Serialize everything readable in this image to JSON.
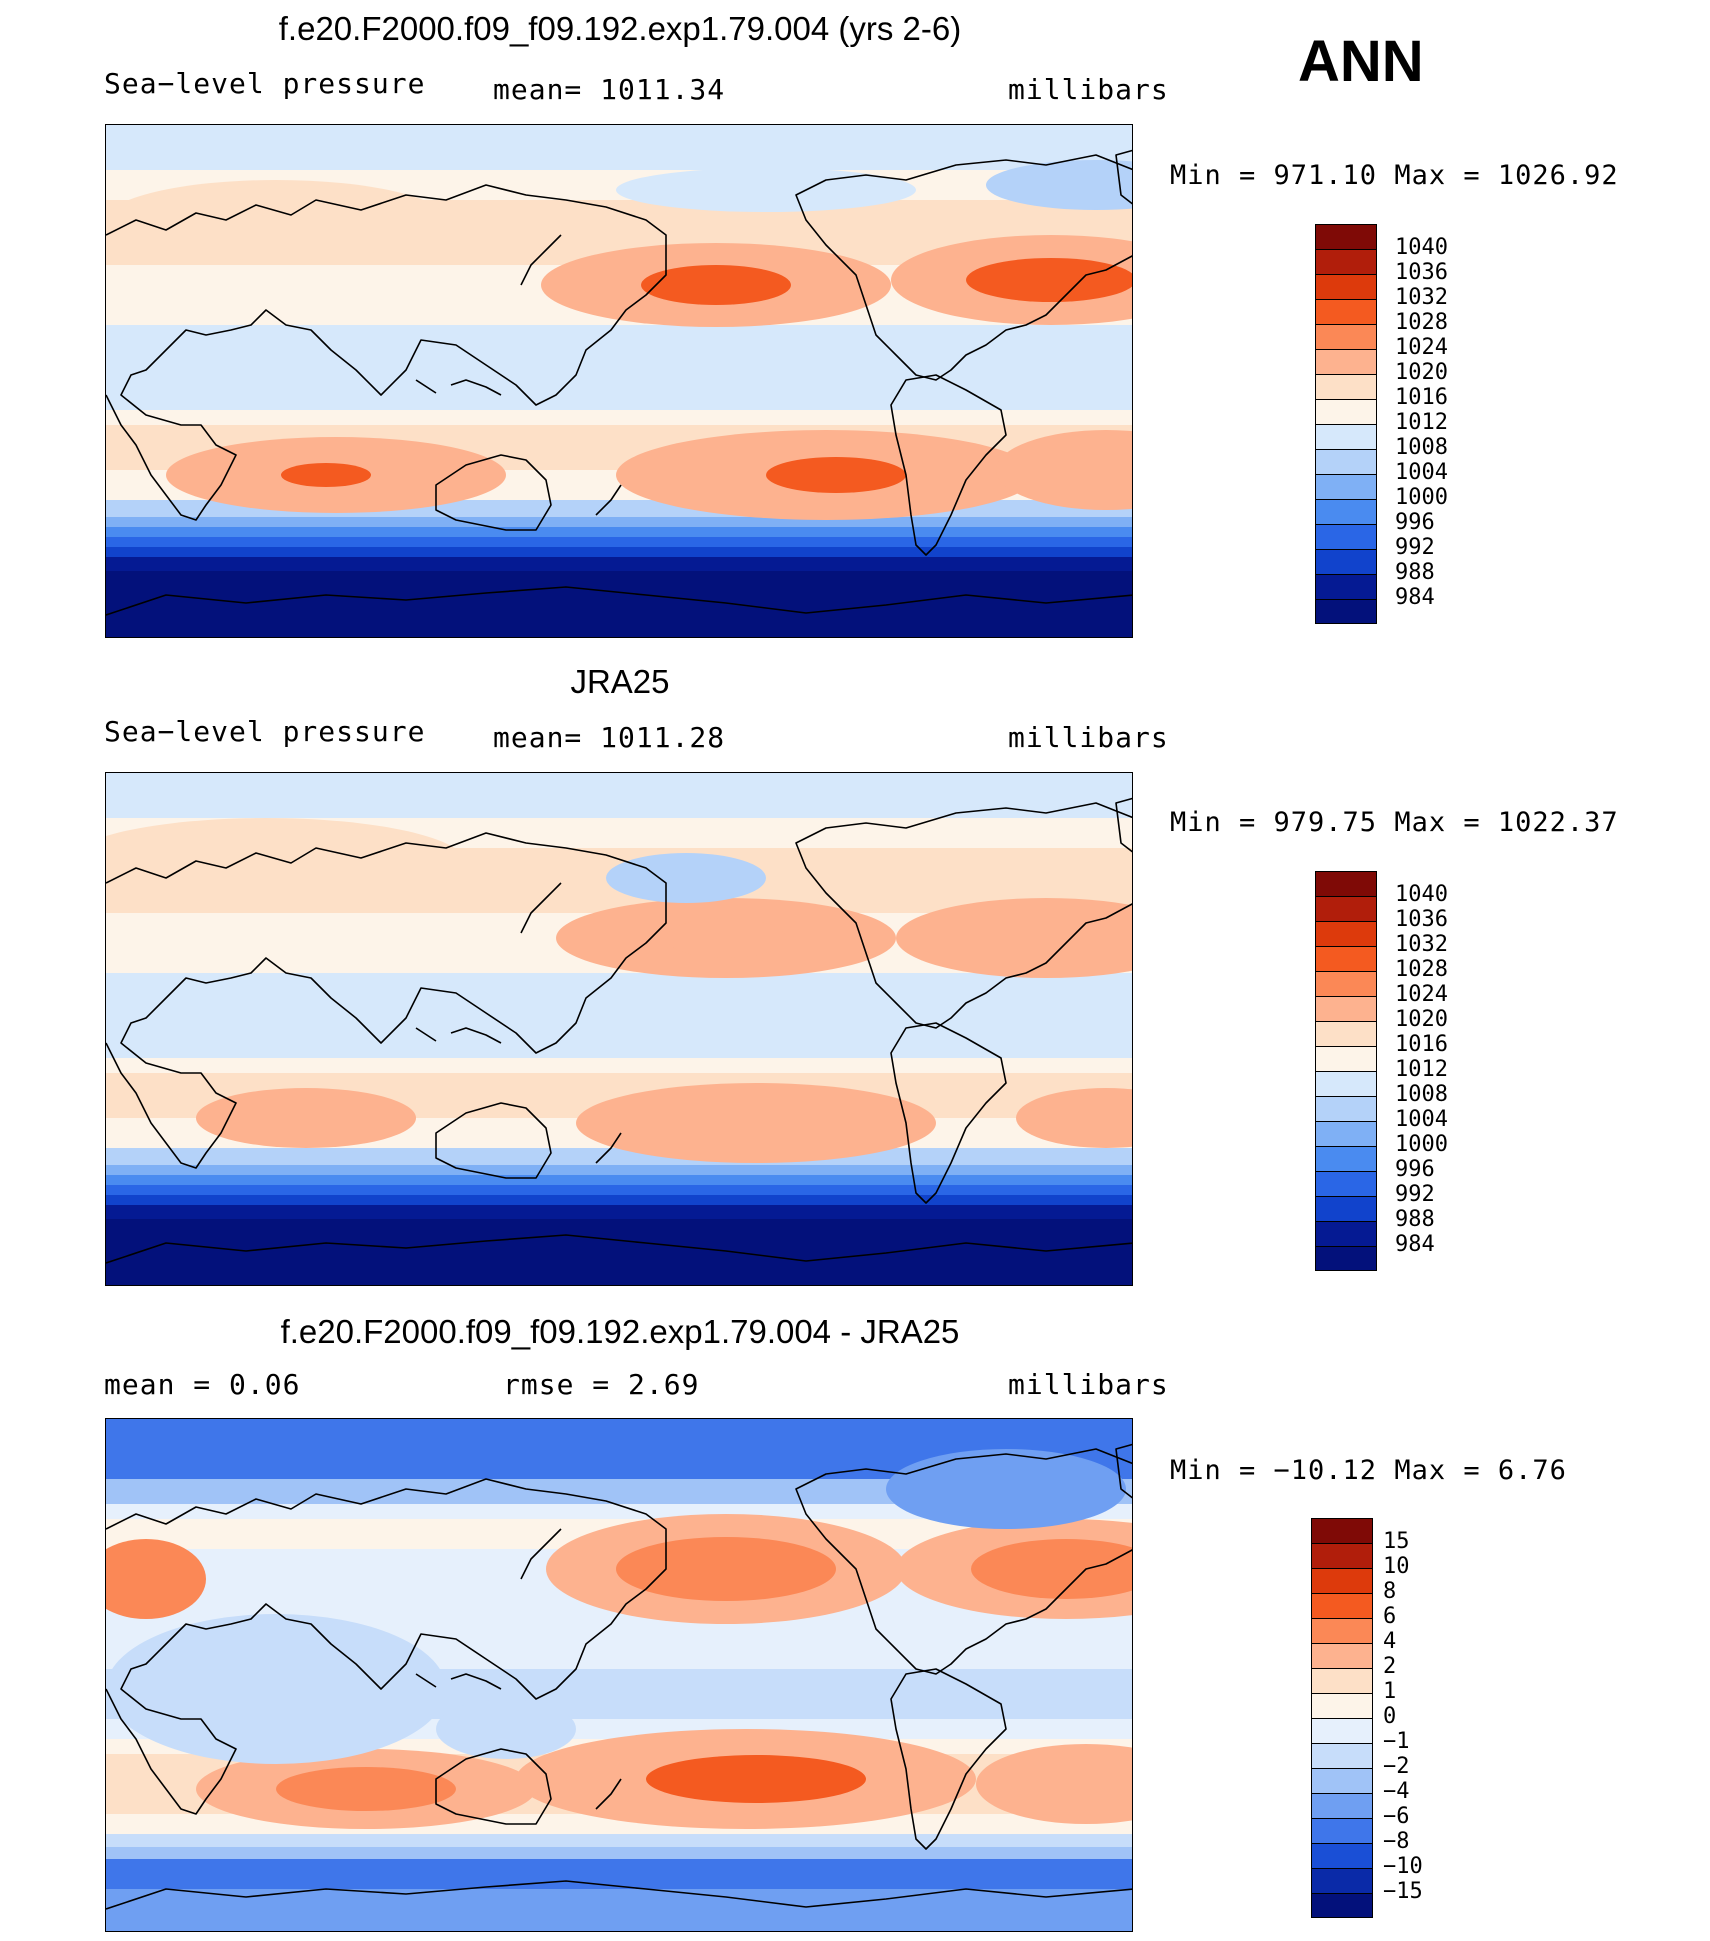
{
  "season": "ANN",
  "panels": [
    {
      "id": "model",
      "title": "f.e20.F2000.f09_f09.192.exp1.79.004 (yrs 2-6)",
      "left_label": "Sea−level pressure",
      "center_label": "mean=  1011.34",
      "units": "millibars",
      "minmax": "Min  =  971.10 Max  =  1026.92",
      "colorbar": {
        "levels": [
          "1040",
          "1036",
          "1032",
          "1028",
          "1024",
          "1020",
          "1016",
          "1012",
          "1008",
          "1004",
          "1000",
          "996",
          "992",
          "988",
          "984"
        ],
        "colors": [
          "#7f0a06",
          "#b11e0b",
          "#dd3a0c",
          "#f45a20",
          "#fb8856",
          "#fdb28f",
          "#fde0c7",
          "#fdf4e9",
          "#d6e8fb",
          "#b4d2f9",
          "#7fb0f5",
          "#4a8bf0",
          "#2a66e6",
          "#1143cc",
          "#051a93",
          "#03117b"
        ]
      }
    },
    {
      "id": "obs",
      "title": "JRA25",
      "left_label": "Sea−level pressure",
      "center_label": "mean=  1011.28",
      "units": "millibars",
      "minmax": "Min  =  979.75 Max  =  1022.37",
      "colorbar": {
        "levels": [
          "1040",
          "1036",
          "1032",
          "1028",
          "1024",
          "1020",
          "1016",
          "1012",
          "1008",
          "1004",
          "1000",
          "996",
          "992",
          "988",
          "984"
        ],
        "colors": [
          "#7f0a06",
          "#b11e0b",
          "#dd3a0c",
          "#f45a20",
          "#fb8856",
          "#fdb28f",
          "#fde0c7",
          "#fdf4e9",
          "#d6e8fb",
          "#b4d2f9",
          "#7fb0f5",
          "#4a8bf0",
          "#2a66e6",
          "#1143cc",
          "#051a93",
          "#03117b"
        ]
      }
    },
    {
      "id": "diff",
      "title": "f.e20.F2000.f09_f09.192.exp1.79.004 - JRA25",
      "left_label": "mean =     0.06",
      "center_label": "rmse =     2.69",
      "units": "millibars",
      "minmax": "Min  = −10.12 Max  =     6.76",
      "colorbar": {
        "levels": [
          "15",
          "10",
          "8",
          "6",
          "4",
          "2",
          "1",
          "0",
          "−1",
          "−2",
          "−4",
          "−6",
          "−8",
          "−10",
          "−15"
        ],
        "colors": [
          "#7f0a06",
          "#b11e0b",
          "#dd3a0c",
          "#f45a20",
          "#fb8856",
          "#fdb28f",
          "#fde0c7",
          "#fdf4e9",
          "#e6f0fc",
          "#c7ddfa",
          "#a0c3f7",
          "#6f9ff2",
          "#3f76ea",
          "#1a4fd6",
          "#0a2aa8",
          "#03117b"
        ]
      }
    }
  ],
  "colors": {
    "land_outline": "#000000",
    "frame": "#000000"
  }
}
